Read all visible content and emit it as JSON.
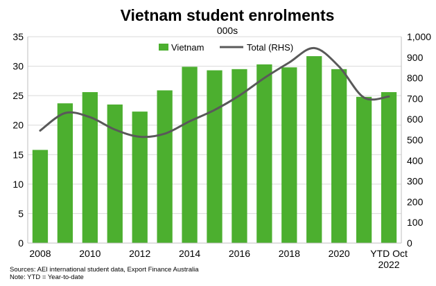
{
  "chart_data": {
    "type": "bar",
    "title": "Vietnam student enrolments",
    "subtitle": "000s",
    "categories": [
      "2008",
      "2009",
      "2010",
      "2011",
      "2012",
      "2013",
      "2014",
      "2015",
      "2016",
      "2017",
      "2018",
      "2019",
      "2020",
      "2021",
      "YTD Oct 2022"
    ],
    "x_tick_labels": [
      {
        "category_index": 0,
        "lines": [
          "2008"
        ]
      },
      {
        "category_index": 2,
        "lines": [
          "2010"
        ]
      },
      {
        "category_index": 4,
        "lines": [
          "2012"
        ]
      },
      {
        "category_index": 6,
        "lines": [
          "2014"
        ]
      },
      {
        "category_index": 8,
        "lines": [
          "2016"
        ]
      },
      {
        "category_index": 10,
        "lines": [
          "2018"
        ]
      },
      {
        "category_index": 12,
        "lines": [
          "2020"
        ]
      },
      {
        "category_index": 14,
        "lines": [
          "YTD Oct",
          "2022"
        ]
      }
    ],
    "series": [
      {
        "name": "Vietnam",
        "type": "bar",
        "axis": "left",
        "color": "#4CAF2F",
        "values": [
          15.8,
          23.7,
          25.6,
          23.5,
          22.3,
          25.9,
          29.9,
          29.3,
          29.5,
          30.3,
          29.8,
          31.7,
          29.5,
          24.8,
          25.6
        ]
      },
      {
        "name": "Total (RHS)",
        "type": "line",
        "axis": "right",
        "color": "#595959",
        "values": [
          545,
          630,
          610,
          550,
          515,
          530,
          590,
          645,
          715,
          800,
          875,
          945,
          855,
          705,
          710
        ]
      }
    ],
    "ylabel_left": "",
    "ylabel_right": "",
    "ylim_left": [
      0,
      35
    ],
    "yticks_left": [
      0,
      5,
      10,
      15,
      20,
      25,
      30,
      35
    ],
    "ylim_right": [
      0,
      1000
    ],
    "yticks_right": [
      "0",
      "100",
      "200",
      "300",
      "400",
      "500",
      "600",
      "700",
      "800",
      "900",
      "1,000"
    ],
    "grid": true,
    "legend_position": "top-center"
  },
  "footnotes": {
    "source": "Sources: AEI international student data, Export Finance Australia",
    "note": "Note: YTD = Year-to-date"
  }
}
